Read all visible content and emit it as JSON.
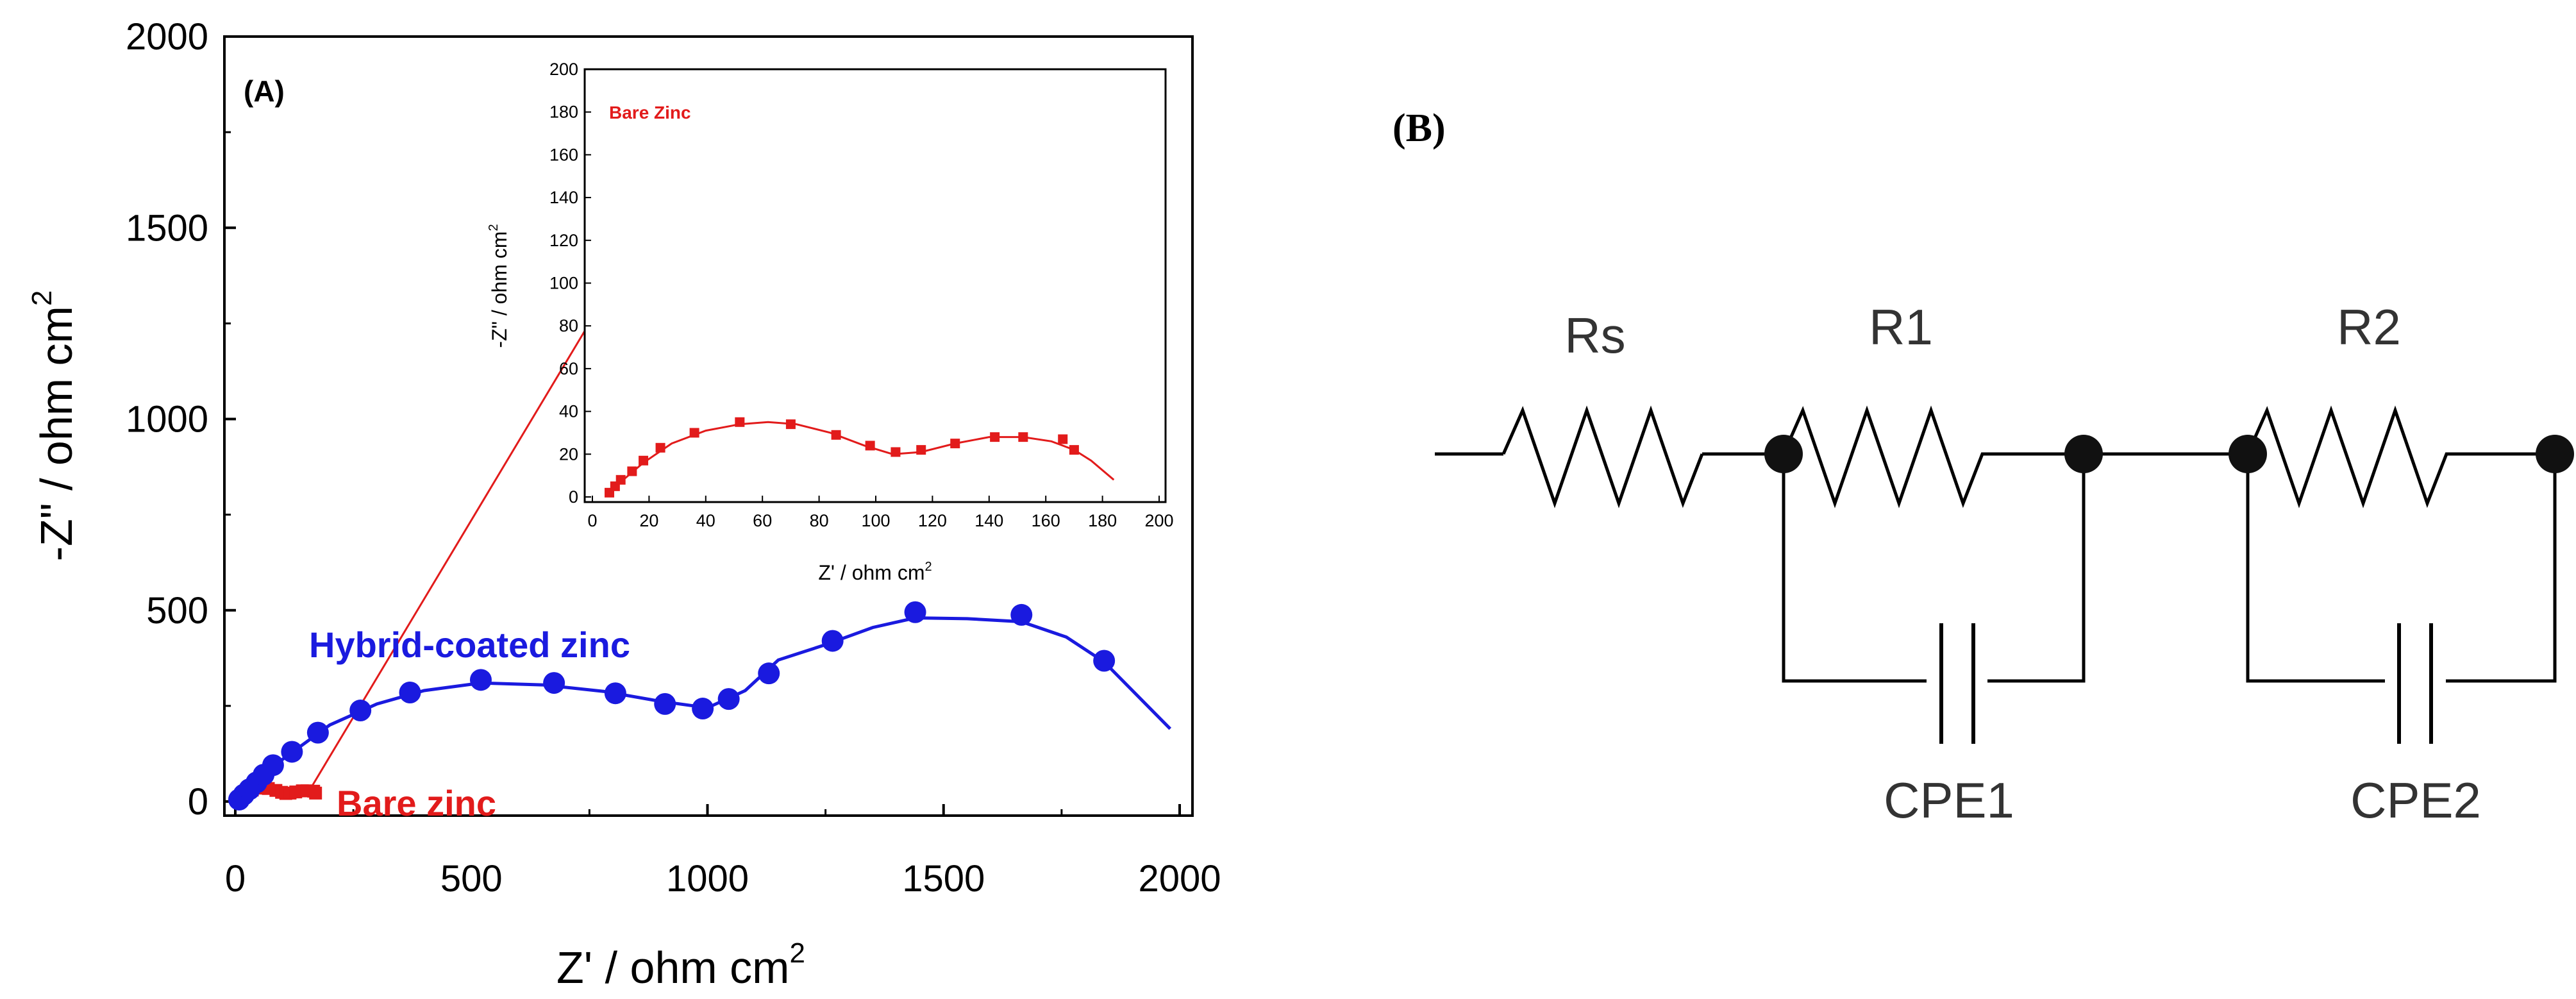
{
  "chart_data": [
    {
      "type": "scatter",
      "panel_label": "(A)",
      "xlabel": "Z' / ohm cm",
      "xlabel_sup": "2",
      "ylabel": "-Z\" / ohm cm",
      "ylabel_sup": "2",
      "xlim": [
        0,
        2000
      ],
      "ylim": [
        0,
        2000
      ],
      "x_ticks": [
        "0",
        "500",
        "1000",
        "1500",
        "2000"
      ],
      "y_ticks": [
        "0",
        "500",
        "1000",
        "1500",
        "2000"
      ],
      "series": [
        {
          "name": "Hybrid-coated zinc",
          "color": "#1a1adf",
          "marker": "circle",
          "points": [
            [
              8,
              5
            ],
            [
              18,
              18
            ],
            [
              30,
              32
            ],
            [
              45,
              50
            ],
            [
              60,
              70
            ],
            [
              80,
              95
            ],
            [
              120,
              130
            ],
            [
              175,
              180
            ],
            [
              265,
              238
            ],
            [
              370,
              285
            ],
            [
              520,
              318
            ],
            [
              675,
              310
            ],
            [
              805,
              283
            ],
            [
              910,
              255
            ],
            [
              990,
              243
            ],
            [
              1045,
              268
            ],
            [
              1130,
              335
            ],
            [
              1265,
              420
            ],
            [
              1440,
              495
            ],
            [
              1665,
              488
            ],
            [
              1840,
              368
            ]
          ],
          "fit": [
            [
              5,
              5
            ],
            [
              20,
              20
            ],
            [
              50,
              55
            ],
            [
              100,
              110
            ],
            [
              200,
              200
            ],
            [
              300,
              255
            ],
            [
              400,
              290
            ],
            [
              520,
              310
            ],
            [
              650,
              305
            ],
            [
              780,
              288
            ],
            [
              900,
              262
            ],
            [
              1000,
              245
            ],
            [
              1080,
              290
            ],
            [
              1150,
              370
            ],
            [
              1250,
              410
            ],
            [
              1350,
              455
            ],
            [
              1440,
              480
            ],
            [
              1550,
              478
            ],
            [
              1665,
              470
            ],
            [
              1760,
              430
            ],
            [
              1840,
              365
            ],
            [
              1900,
              290
            ],
            [
              1980,
              190
            ]
          ]
        },
        {
          "name": "Bare zinc",
          "color": "#e21b1b",
          "marker": "square",
          "points": [
            [
              6,
              2
            ],
            [
              8,
              5
            ],
            [
              10,
              8
            ],
            [
              14,
              12
            ],
            [
              18,
              17
            ],
            [
              24,
              23
            ],
            [
              36,
              30
            ],
            [
              52,
              35
            ],
            [
              70,
              34
            ],
            [
              86,
              29
            ],
            [
              98,
              24
            ],
            [
              107,
              21
            ],
            [
              116,
              22
            ],
            [
              128,
              25
            ],
            [
              142,
              28
            ],
            [
              152,
              28
            ],
            [
              166,
              27
            ],
            [
              170,
              22
            ]
          ]
        }
      ],
      "annotation_arrow": {
        "from": [
          160,
          35
        ],
        "to": [
          820,
          1395
        ]
      },
      "inset": {
        "label": "Bare Zinc",
        "xlabel": "Z' / ohm cm",
        "xlabel_sup": "2",
        "ylabel": "-Z\" / ohm cm",
        "ylabel_sup": "2",
        "xlim": [
          0,
          200
        ],
        "ylim": [
          0,
          200
        ],
        "x_ticks": [
          "0",
          "20",
          "40",
          "60",
          "80",
          "100",
          "120",
          "140",
          "160",
          "180",
          "200"
        ],
        "y_ticks": [
          "0",
          "20",
          "40",
          "60",
          "80",
          "100",
          "120",
          "140",
          "160",
          "180",
          "200"
        ],
        "color": "#e21b1b",
        "points": [
          [
            6,
            2
          ],
          [
            8,
            5
          ],
          [
            10,
            8
          ],
          [
            14,
            12
          ],
          [
            18,
            17
          ],
          [
            24,
            23
          ],
          [
            36,
            30
          ],
          [
            52,
            35
          ],
          [
            70,
            34
          ],
          [
            86,
            29
          ],
          [
            98,
            24
          ],
          [
            107,
            21
          ],
          [
            116,
            22
          ],
          [
            128,
            25
          ],
          [
            142,
            28
          ],
          [
            152,
            28
          ],
          [
            166,
            27
          ],
          [
            170,
            22
          ]
        ],
        "fit": [
          [
            5,
            1
          ],
          [
            10,
            7
          ],
          [
            18,
            16
          ],
          [
            28,
            25
          ],
          [
            40,
            31
          ],
          [
            52,
            34
          ],
          [
            62,
            35
          ],
          [
            72,
            34
          ],
          [
            84,
            30
          ],
          [
            96,
            24
          ],
          [
            106,
            20
          ],
          [
            116,
            21
          ],
          [
            128,
            25
          ],
          [
            140,
            28
          ],
          [
            152,
            28
          ],
          [
            162,
            26
          ],
          [
            170,
            22
          ],
          [
            176,
            17
          ],
          [
            184,
            8
          ]
        ]
      }
    }
  ],
  "diagram": {
    "panel_label": "(B)",
    "components": [
      {
        "name": "Rs",
        "kind": "resistor"
      },
      {
        "name": "R1",
        "kind": "resistor"
      },
      {
        "name": "R2",
        "kind": "resistor"
      },
      {
        "name": "CPE1",
        "kind": "capacitor"
      },
      {
        "name": "CPE2",
        "kind": "capacitor"
      }
    ]
  }
}
